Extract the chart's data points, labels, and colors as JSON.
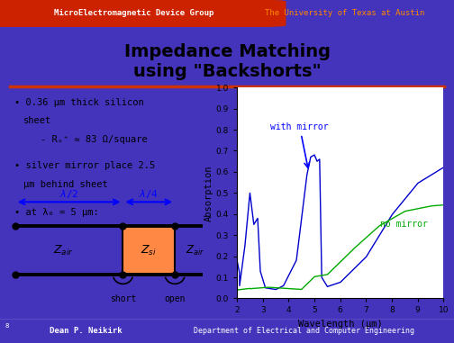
{
  "bg_color": "#4433bb",
  "main_bg": "#ffffff",
  "title_line1": "Impedance Matching",
  "title_line2": "using \"Backshorts\"",
  "title_color": "#000000",
  "header_left": "MicroElectromagnetic Device Group",
  "header_right": "The University of Texas at Austin",
  "footer_left": "Dean P. Neikirk",
  "footer_right": "Department of Electrical and Computer Engineering",
  "header_blob_color": "#cc2200",
  "footer_bg": "#4433bb",
  "orange_line_color": "#cc3300",
  "blue_color": "#0000cc",
  "green_color": "#00aa00",
  "with_mirror_label": "with mirror",
  "no_mirror_label": "no mirror",
  "slide_number": "8",
  "xlabel": "Wavelength (μm)",
  "ylabel": "Absorption"
}
